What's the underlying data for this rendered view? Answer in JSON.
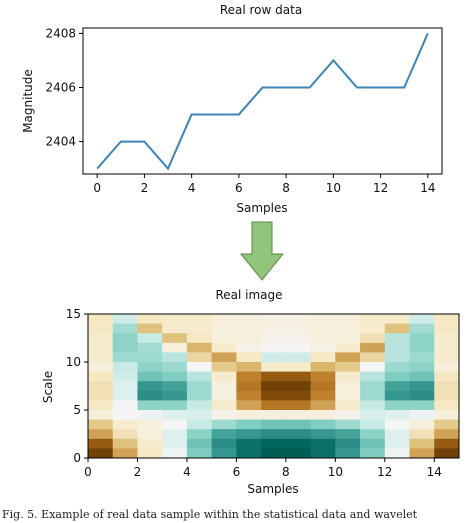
{
  "chart_data": [
    {
      "type": "line",
      "title": "Real  row data",
      "xlabel": "Samples",
      "ylabel": "Magnitude",
      "x": [
        0,
        1,
        2,
        3,
        4,
        5,
        6,
        7,
        8,
        9,
        10,
        11,
        12,
        13,
        14
      ],
      "series": [
        {
          "values": [
            2403,
            2404,
            2404,
            2403,
            2405,
            2405,
            2405,
            2406,
            2406,
            2406,
            2407,
            2406,
            2406,
            2406,
            2408
          ]
        }
      ],
      "xlim": [
        -0.6,
        14.6
      ],
      "ylim": [
        2402.8,
        2408.2
      ],
      "xticks": [
        0,
        2,
        4,
        6,
        8,
        10,
        12,
        14
      ],
      "yticks": [
        2404,
        2406,
        2408
      ],
      "line_color": "#3a84b8",
      "grid": false
    },
    {
      "type": "heatmap",
      "title": "Real image",
      "xlabel": "Samples",
      "ylabel": "Scale",
      "xlim": [
        0,
        15
      ],
      "ylim": [
        0,
        15
      ],
      "xticks": [
        0,
        2,
        4,
        6,
        8,
        10,
        12,
        14
      ],
      "yticks": [
        0,
        5,
        10,
        15
      ],
      "colormap": "BrBG",
      "rows_top_to_bottom": [
        [
          0.4,
          0.58,
          0.4,
          0.42,
          0.42,
          0.45,
          0.45,
          0.46,
          0.46,
          0.45,
          0.45,
          0.42,
          0.42,
          0.58,
          0.4
        ],
        [
          0.4,
          0.65,
          0.3,
          0.42,
          0.42,
          0.45,
          0.45,
          0.46,
          0.46,
          0.45,
          0.45,
          0.42,
          0.3,
          0.65,
          0.4
        ],
        [
          0.42,
          0.68,
          0.6,
          0.3,
          0.4,
          0.45,
          0.45,
          0.48,
          0.48,
          0.45,
          0.45,
          0.38,
          0.62,
          0.68,
          0.42
        ],
        [
          0.42,
          0.68,
          0.65,
          0.45,
          0.28,
          0.42,
          0.47,
          0.5,
          0.5,
          0.47,
          0.42,
          0.25,
          0.62,
          0.68,
          0.42
        ],
        [
          0.42,
          0.66,
          0.66,
          0.62,
          0.35,
          0.25,
          0.4,
          0.58,
          0.58,
          0.4,
          0.25,
          0.35,
          0.62,
          0.66,
          0.42
        ],
        [
          0.45,
          0.6,
          0.68,
          0.66,
          0.5,
          0.32,
          0.28,
          0.42,
          0.42,
          0.28,
          0.32,
          0.5,
          0.66,
          0.68,
          0.45
        ],
        [
          0.4,
          0.58,
          0.72,
          0.7,
          0.62,
          0.42,
          0.2,
          0.12,
          0.12,
          0.2,
          0.42,
          0.62,
          0.7,
          0.72,
          0.4
        ],
        [
          0.38,
          0.55,
          0.8,
          0.78,
          0.66,
          0.45,
          0.18,
          0.05,
          0.05,
          0.18,
          0.45,
          0.66,
          0.78,
          0.8,
          0.38
        ],
        [
          0.38,
          0.55,
          0.82,
          0.8,
          0.66,
          0.45,
          0.2,
          0.08,
          0.08,
          0.2,
          0.45,
          0.66,
          0.8,
          0.82,
          0.38
        ],
        [
          0.4,
          0.5,
          0.68,
          0.68,
          0.6,
          0.42,
          0.25,
          0.18,
          0.18,
          0.25,
          0.42,
          0.6,
          0.68,
          0.68,
          0.4
        ],
        [
          0.45,
          0.5,
          0.52,
          0.55,
          0.56,
          0.48,
          0.45,
          0.45,
          0.45,
          0.45,
          0.48,
          0.56,
          0.55,
          0.52,
          0.45
        ],
        [
          0.32,
          0.42,
          0.45,
          0.5,
          0.6,
          0.66,
          0.7,
          0.72,
          0.72,
          0.7,
          0.66,
          0.6,
          0.5,
          0.45,
          0.32
        ],
        [
          0.25,
          0.38,
          0.45,
          0.55,
          0.68,
          0.78,
          0.8,
          0.82,
          0.82,
          0.8,
          0.78,
          0.68,
          0.55,
          0.38,
          0.25
        ],
        [
          0.12,
          0.3,
          0.42,
          0.55,
          0.72,
          0.82,
          0.88,
          0.9,
          0.9,
          0.88,
          0.82,
          0.72,
          0.55,
          0.3,
          0.12
        ],
        [
          0.05,
          0.25,
          0.4,
          0.52,
          0.7,
          0.8,
          0.88,
          0.92,
          0.92,
          0.88,
          0.8,
          0.7,
          0.52,
          0.25,
          0.05
        ]
      ]
    }
  ],
  "arrow_color": "#92c47c",
  "caption": "Fig. 5.   Example of real data sample within the statistical data and wavelet"
}
